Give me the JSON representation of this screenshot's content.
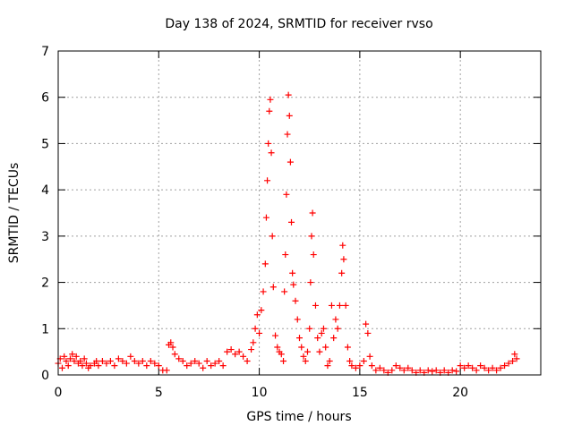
{
  "chart_data": {
    "type": "scatter",
    "title": "Day 138 of 2024, SRMTID for receiver rvso",
    "xlabel": "GPS time / hours",
    "ylabel": "SRMTID / TECUs",
    "xlim": [
      0,
      24
    ],
    "ylim": [
      0,
      7
    ],
    "xticks": [
      0,
      5,
      10,
      15,
      20
    ],
    "yticks": [
      0,
      1,
      2,
      3,
      4,
      5,
      6,
      7
    ],
    "grid": true,
    "marker": "+",
    "color": "#ff0000",
    "series": [
      {
        "name": "SRMTID",
        "points": [
          [
            0.0,
            0.25
          ],
          [
            0.1,
            0.35
          ],
          [
            0.2,
            0.15
          ],
          [
            0.3,
            0.4
          ],
          [
            0.4,
            0.3
          ],
          [
            0.5,
            0.2
          ],
          [
            0.6,
            0.35
          ],
          [
            0.7,
            0.45
          ],
          [
            0.8,
            0.3
          ],
          [
            0.9,
            0.4
          ],
          [
            1.0,
            0.25
          ],
          [
            1.1,
            0.3
          ],
          [
            1.2,
            0.2
          ],
          [
            1.3,
            0.35
          ],
          [
            1.4,
            0.25
          ],
          [
            1.5,
            0.15
          ],
          [
            1.6,
            0.2
          ],
          [
            1.8,
            0.25
          ],
          [
            1.9,
            0.3
          ],
          [
            2.0,
            0.2
          ],
          [
            2.2,
            0.3
          ],
          [
            2.4,
            0.25
          ],
          [
            2.6,
            0.3
          ],
          [
            2.8,
            0.2
          ],
          [
            3.0,
            0.35
          ],
          [
            3.2,
            0.3
          ],
          [
            3.4,
            0.25
          ],
          [
            3.6,
            0.4
          ],
          [
            3.8,
            0.3
          ],
          [
            4.0,
            0.25
          ],
          [
            4.2,
            0.3
          ],
          [
            4.4,
            0.2
          ],
          [
            4.6,
            0.3
          ],
          [
            4.8,
            0.25
          ],
          [
            5.0,
            0.2
          ],
          [
            5.2,
            0.1
          ],
          [
            5.4,
            0.1
          ],
          [
            5.5,
            0.65
          ],
          [
            5.6,
            0.7
          ],
          [
            5.7,
            0.6
          ],
          [
            5.8,
            0.45
          ],
          [
            6.0,
            0.35
          ],
          [
            6.2,
            0.3
          ],
          [
            6.4,
            0.2
          ],
          [
            6.6,
            0.25
          ],
          [
            6.8,
            0.3
          ],
          [
            7.0,
            0.25
          ],
          [
            7.2,
            0.15
          ],
          [
            7.4,
            0.3
          ],
          [
            7.6,
            0.2
          ],
          [
            7.8,
            0.25
          ],
          [
            8.0,
            0.3
          ],
          [
            8.2,
            0.2
          ],
          [
            8.4,
            0.5
          ],
          [
            8.6,
            0.55
          ],
          [
            8.8,
            0.45
          ],
          [
            9.0,
            0.5
          ],
          [
            9.2,
            0.4
          ],
          [
            9.4,
            0.3
          ],
          [
            9.6,
            0.55
          ],
          [
            9.7,
            0.7
          ],
          [
            9.8,
            1.0
          ],
          [
            9.9,
            1.3
          ],
          [
            10.0,
            0.9
          ],
          [
            10.1,
            1.4
          ],
          [
            10.2,
            1.8
          ],
          [
            10.3,
            2.4
          ],
          [
            10.35,
            3.4
          ],
          [
            10.4,
            4.2
          ],
          [
            10.45,
            5.0
          ],
          [
            10.5,
            5.7
          ],
          [
            10.55,
            5.95
          ],
          [
            10.6,
            4.8
          ],
          [
            10.65,
            3.0
          ],
          [
            10.7,
            1.9
          ],
          [
            10.8,
            0.85
          ],
          [
            10.9,
            0.6
          ],
          [
            11.0,
            0.5
          ],
          [
            11.1,
            0.45
          ],
          [
            11.2,
            0.3
          ],
          [
            11.25,
            1.8
          ],
          [
            11.3,
            2.6
          ],
          [
            11.35,
            3.9
          ],
          [
            11.4,
            5.2
          ],
          [
            11.45,
            6.05
          ],
          [
            11.5,
            5.6
          ],
          [
            11.55,
            4.6
          ],
          [
            11.6,
            3.3
          ],
          [
            11.65,
            2.2
          ],
          [
            11.7,
            1.95
          ],
          [
            11.8,
            1.6
          ],
          [
            11.9,
            1.2
          ],
          [
            12.0,
            0.8
          ],
          [
            12.1,
            0.6
          ],
          [
            12.2,
            0.4
          ],
          [
            12.3,
            0.3
          ],
          [
            12.4,
            0.5
          ],
          [
            12.5,
            1.0
          ],
          [
            12.55,
            2.0
          ],
          [
            12.6,
            3.0
          ],
          [
            12.65,
            3.5
          ],
          [
            12.7,
            2.6
          ],
          [
            12.8,
            1.5
          ],
          [
            12.9,
            0.8
          ],
          [
            13.0,
            0.5
          ],
          [
            13.1,
            0.9
          ],
          [
            13.2,
            1.0
          ],
          [
            13.3,
            0.6
          ],
          [
            13.4,
            0.2
          ],
          [
            13.5,
            0.3
          ],
          [
            13.6,
            1.5
          ],
          [
            13.7,
            0.8
          ],
          [
            13.8,
            1.2
          ],
          [
            13.9,
            1.0
          ],
          [
            14.0,
            1.5
          ],
          [
            14.1,
            2.2
          ],
          [
            14.15,
            2.8
          ],
          [
            14.2,
            2.5
          ],
          [
            14.3,
            1.5
          ],
          [
            14.4,
            0.6
          ],
          [
            14.5,
            0.3
          ],
          [
            14.6,
            0.2
          ],
          [
            14.8,
            0.15
          ],
          [
            15.0,
            0.2
          ],
          [
            15.2,
            0.3
          ],
          [
            15.3,
            1.1
          ],
          [
            15.4,
            0.9
          ],
          [
            15.5,
            0.4
          ],
          [
            15.6,
            0.2
          ],
          [
            15.8,
            0.1
          ],
          [
            16.0,
            0.15
          ],
          [
            16.2,
            0.1
          ],
          [
            16.4,
            0.05
          ],
          [
            16.6,
            0.1
          ],
          [
            16.8,
            0.2
          ],
          [
            17.0,
            0.15
          ],
          [
            17.2,
            0.1
          ],
          [
            17.4,
            0.15
          ],
          [
            17.6,
            0.1
          ],
          [
            17.8,
            0.05
          ],
          [
            18.0,
            0.1
          ],
          [
            18.2,
            0.05
          ],
          [
            18.4,
            0.1
          ],
          [
            18.6,
            0.08
          ],
          [
            18.8,
            0.1
          ],
          [
            19.0,
            0.05
          ],
          [
            19.2,
            0.1
          ],
          [
            19.4,
            0.05
          ],
          [
            19.6,
            0.1
          ],
          [
            19.8,
            0.08
          ],
          [
            20.0,
            0.2
          ],
          [
            20.2,
            0.15
          ],
          [
            20.4,
            0.2
          ],
          [
            20.6,
            0.15
          ],
          [
            20.8,
            0.1
          ],
          [
            21.0,
            0.2
          ],
          [
            21.2,
            0.15
          ],
          [
            21.4,
            0.1
          ],
          [
            21.6,
            0.15
          ],
          [
            21.8,
            0.1
          ],
          [
            22.0,
            0.15
          ],
          [
            22.2,
            0.2
          ],
          [
            22.4,
            0.25
          ],
          [
            22.6,
            0.3
          ],
          [
            22.7,
            0.45
          ],
          [
            22.8,
            0.35
          ]
        ]
      }
    ]
  }
}
